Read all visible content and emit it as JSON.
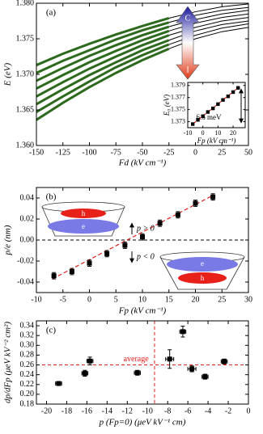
{
  "chart_data": [
    {
      "type": "line",
      "panel_label": "(a)",
      "xlabel": "Fd (kV cm⁻¹)",
      "ylabel": "E (eV)",
      "x": [
        -150,
        -125,
        -100,
        -75,
        -50,
        -25,
        0,
        25,
        50
      ],
      "xlim": [
        -150,
        50
      ],
      "xticks": [
        -150,
        -125,
        -100,
        -75,
        -50,
        -25,
        0,
        25,
        50
      ],
      "ylim": [
        1.36,
        1.38
      ],
      "yticks": [
        {
          "value": 1.36,
          "label": "1.360"
        },
        1.365,
        {
          "value": 1.37,
          "label": "1.370"
        },
        1.375,
        {
          "value": 1.38,
          "label": "1.380"
        }
      ],
      "annotations": [
        "C",
        "I"
      ],
      "series": [
        {
          "color": "#2d6a1e",
          "width": 3,
          "values": [
            1.3636,
            1.366,
            1.3682,
            1.3702,
            1.372,
            1.3736,
            null,
            null,
            null
          ]
        },
        {
          "color": "#2d6a1e",
          "width": 3,
          "values": [
            1.3647,
            1.3669,
            1.369,
            1.371,
            1.3727,
            1.3742,
            null,
            null,
            null
          ]
        },
        {
          "color": "#2d6a1e",
          "width": 3,
          "values": [
            1.3658,
            1.3679,
            1.3699,
            1.3717,
            1.3734,
            1.3748,
            null,
            null,
            null
          ]
        },
        {
          "color": "#2d6a1e",
          "width": 3,
          "values": [
            1.3669,
            1.3689,
            1.3708,
            1.3725,
            1.3741,
            1.3755,
            null,
            null,
            null
          ]
        },
        {
          "color": "#2d6a1e",
          "width": 3,
          "values": [
            1.368,
            1.3699,
            1.3717,
            1.3733,
            1.3748,
            1.3761,
            null,
            null,
            null
          ]
        },
        {
          "color": "#2d6a1e",
          "width": 3,
          "values": [
            1.3691,
            1.3709,
            1.3726,
            1.3741,
            1.3755,
            1.3767,
            null,
            null,
            null
          ]
        },
        {
          "color": "#2d6a1e",
          "width": 3,
          "values": [
            1.3702,
            1.3719,
            1.3734,
            1.3749,
            1.3762,
            1.3773,
            null,
            null,
            null
          ]
        },
        {
          "color": "#2d6a1e",
          "width": 3,
          "values": [
            1.3713,
            1.3729,
            1.3743,
            1.3756,
            1.3768,
            1.3779,
            null,
            null,
            null
          ]
        },
        {
          "color": "#000000",
          "width": 1,
          "values": [
            null,
            null,
            null,
            null,
            null,
            1.3736,
            1.375,
            1.376,
            1.3766
          ]
        },
        {
          "color": "#000000",
          "width": 1,
          "values": [
            null,
            null,
            null,
            null,
            null,
            1.3742,
            1.3755,
            1.3765,
            1.3771
          ]
        },
        {
          "color": "#000000",
          "width": 1,
          "values": [
            null,
            null,
            null,
            null,
            null,
            1.3748,
            1.3761,
            1.377,
            1.3775
          ]
        },
        {
          "color": "#000000",
          "width": 1,
          "values": [
            null,
            null,
            null,
            null,
            null,
            1.3755,
            1.3766,
            1.3775,
            1.378
          ]
        },
        {
          "color": "#000000",
          "width": 1,
          "values": [
            null,
            null,
            null,
            null,
            null,
            1.3761,
            1.3772,
            1.378,
            1.3785
          ]
        },
        {
          "color": "#000000",
          "width": 1,
          "values": [
            null,
            null,
            null,
            null,
            null,
            1.3767,
            1.3777,
            1.3785,
            1.379
          ]
        },
        {
          "color": "#000000",
          "width": 1,
          "values": [
            null,
            null,
            null,
            null,
            null,
            1.3773,
            1.3783,
            1.379,
            1.3794
          ]
        },
        {
          "color": "#000000",
          "width": 1,
          "values": [
            null,
            null,
            null,
            null,
            null,
            1.3779,
            1.3788,
            1.3795,
            1.3799
          ]
        }
      ]
    },
    {
      "type": "scatter",
      "xlabel": "Fp (kV cm⁻¹)",
      "ylabel": "E₀ (eV)",
      "xlim": [
        -10,
        28
      ],
      "xticks": [
        -10,
        0,
        10,
        20
      ],
      "ylim": [
        1.372,
        1.3795
      ],
      "yticks": [
        1.373,
        1.375,
        1.377,
        1.379
      ],
      "annotations": [
        "6.6 meV"
      ],
      "series": [
        {
          "color": "#e0201c",
          "linestyle": "dashed",
          "x": [
            -6.7,
            23.3
          ],
          "values": [
            1.3726,
            1.3786
          ]
        },
        {
          "color": "#000000",
          "marker": "square",
          "x": [
            -6.7,
            -3.3,
            0,
            3.3,
            6.7,
            10,
            13.3,
            16.7,
            20,
            23.3
          ],
          "values": [
            1.3726,
            1.3733,
            1.3739,
            1.3746,
            1.3752,
            1.3759,
            1.3766,
            1.3772,
            1.3779,
            1.3786
          ]
        }
      ]
    },
    {
      "type": "scatter",
      "panel_label": "(b)",
      "xlabel": "Fp (kV cm⁻¹)",
      "ylabel": "p/e (nm)",
      "xlim": [
        -10,
        30
      ],
      "xticks": [
        -10,
        -5,
        0,
        5,
        10,
        15,
        20,
        25,
        30
      ],
      "ylim": [
        -0.05,
        0.05
      ],
      "yticks": [
        -0.04,
        -0.02,
        {
          "value": 0,
          "label": "0.00"
        },
        0.02,
        0.04
      ],
      "hlines": [
        {
          "value": 0,
          "color": "#000000"
        }
      ],
      "annotations": [
        "p > 0",
        "p < 0",
        "h",
        "e",
        "e",
        "h"
      ],
      "series": [
        {
          "color": "#e0201c",
          "linestyle": "dashed",
          "x": [
            -7,
            23.5
          ],
          "values": [
            -0.037,
            0.043
          ]
        },
        {
          "color": "#000000",
          "marker": "square",
          "x": [
            -6.7,
            -3.3,
            0,
            3.3,
            6.7,
            10,
            13.3,
            16.7,
            20,
            23.3
          ],
          "values": [
            -0.034,
            -0.03,
            -0.022,
            -0.013,
            -0.005,
            0.003,
            0.016,
            0.024,
            0.035,
            0.041
          ],
          "yerr": [
            0.003,
            0.003,
            0.003,
            0.003,
            0.003,
            0.003,
            0.003,
            0.003,
            0.003,
            0.003
          ]
        }
      ]
    },
    {
      "type": "scatter",
      "panel_label": "(c)",
      "xlabel": "p (Fp=0) (μeV kV⁻¹ cm)",
      "ylabel": "dp/dFp (μeV kV⁻² cm²)",
      "xlim": [
        -21,
        0
      ],
      "xticks": [
        -20,
        -18,
        -16,
        -14,
        -12,
        -10,
        -8,
        -6,
        -4,
        -2,
        0
      ],
      "ylim": [
        0.18,
        0.35
      ],
      "yticks": [
        0.18,
        {
          "value": 0.2,
          "label": "0.20"
        },
        0.22,
        0.24,
        0.26,
        0.28,
        {
          "value": 0.3,
          "label": "0.30"
        },
        0.32,
        0.34
      ],
      "hlines": [
        {
          "value": 0.26,
          "color": "#e0201c",
          "label": "average"
        }
      ],
      "vlines": [
        {
          "value": -9.3,
          "color": "#e0201c"
        }
      ],
      "series": [
        {
          "color": "#000000",
          "marker": "square",
          "x": [
            -18.8,
            -16.2,
            -15.7,
            -11.0,
            -7.8,
            -6.5,
            -5.6,
            -4.3,
            -2.4
          ],
          "values": [
            0.222,
            0.243,
            0.268,
            0.244,
            0.272,
            0.328,
            0.252,
            0.236,
            0.267
          ],
          "yerr": [
            0.004,
            0.006,
            0.008,
            0.005,
            0.019,
            0.011,
            0.006,
            0.005,
            0.005
          ],
          "xerr": [
            0.3,
            0.3,
            0.3,
            0.3,
            0.4,
            0.3,
            0.4,
            0.3,
            0.3
          ]
        }
      ]
    }
  ]
}
